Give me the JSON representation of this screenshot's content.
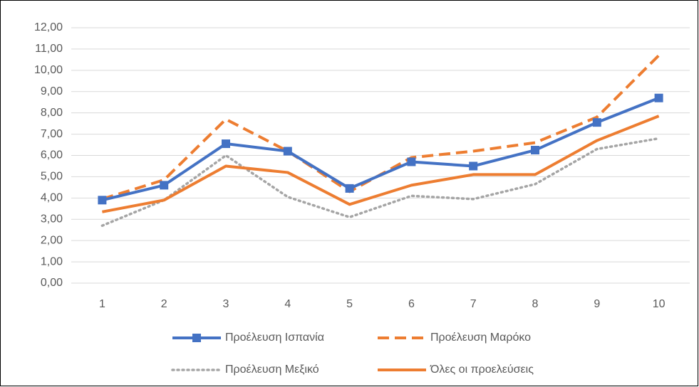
{
  "chart_data": {
    "type": "line",
    "categories": [
      1,
      2,
      3,
      4,
      5,
      6,
      7,
      8,
      9,
      10
    ],
    "series": [
      {
        "name": "Προέλευση Ισπανία",
        "color": "#4472c4",
        "dash": "solid",
        "marker": "square",
        "values": [
          3.9,
          4.6,
          6.55,
          6.2,
          4.45,
          5.7,
          5.5,
          6.25,
          7.55,
          8.7
        ]
      },
      {
        "name": "Προέλευση Μαρόκο",
        "color": "#ed7d31",
        "dash": "dash",
        "values": [
          3.95,
          4.85,
          7.7,
          6.2,
          4.3,
          5.9,
          6.2,
          6.6,
          7.8,
          10.7
        ]
      },
      {
        "name": "Προέλευση Μεξικό",
        "color": "#a5a5a5",
        "dash": "dot",
        "values": [
          2.7,
          3.9,
          6.0,
          4.05,
          3.1,
          4.1,
          3.95,
          4.65,
          6.3,
          6.8
        ]
      },
      {
        "name": "Όλες οι προελεύσεις",
        "color": "#ed7d31",
        "dash": "solid",
        "values": [
          3.35,
          3.9,
          5.5,
          5.2,
          3.7,
          4.6,
          5.1,
          5.1,
          6.7,
          7.85
        ]
      }
    ],
    "ylim": [
      0,
      12
    ],
    "yticks": [
      {
        "value": 0,
        "label": "0,00"
      },
      {
        "value": 1,
        "label": "1,00"
      },
      {
        "value": 2,
        "label": "2,00"
      },
      {
        "value": 3,
        "label": "3,00"
      },
      {
        "value": 4,
        "label": "4,00"
      },
      {
        "value": 5,
        "label": "5,00"
      },
      {
        "value": 6,
        "label": "6,00"
      },
      {
        "value": 7,
        "label": "7,00"
      },
      {
        "value": 8,
        "label": "8,00"
      },
      {
        "value": 9,
        "label": "9,00"
      },
      {
        "value": 10,
        "label": "10,00"
      },
      {
        "value": 11,
        "label": "11,00"
      },
      {
        "value": 12,
        "label": "12,00"
      }
    ],
    "grid": true,
    "legend": "bottom"
  }
}
